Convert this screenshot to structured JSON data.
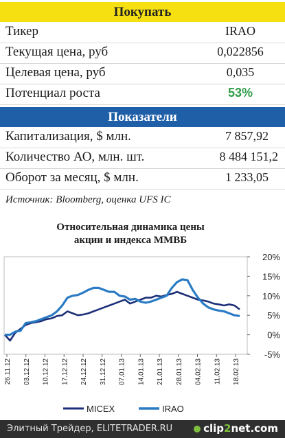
{
  "buy_header": "Покупать",
  "rows": [
    {
      "label": "Тикер",
      "value": "IRAO"
    },
    {
      "label": "Текущая цена, руб",
      "value": "0,022856"
    },
    {
      "label": "Целевая цена, руб",
      "value": "0,035"
    },
    {
      "label": "Потенциал роста",
      "value": "53%"
    }
  ],
  "indicators_header": "Показатели",
  "indicator_rows": [
    {
      "label": "Капитализация, $ млн.",
      "value": "7 857,92"
    },
    {
      "label": "Количество АО, млн. шт.",
      "value": "8 484 151,2"
    },
    {
      "label": "Оборот за месяц, $ млн.",
      "value": "1 233,05"
    }
  ],
  "source": "Источник: Bloomberg, оценка UFS IC",
  "chart_data": {
    "type": "line",
    "title_line1": "Относительная динамика цены",
    "title_line2": "акции и индекса ММВБ",
    "x_ticks": [
      "26.11.12",
      "03.12.12",
      "10.12.12",
      "17.12.12",
      "24.12.12",
      "31.12.12",
      "07.01.13",
      "14.01.13",
      "21.01.13",
      "28.01.13",
      "04.02.13",
      "11.02.13",
      "18.02.13"
    ],
    "y_ticks": [
      "-5%",
      "0%",
      "5%",
      "10%",
      "15%",
      "20%"
    ],
    "ylim": [
      -5,
      20
    ],
    "series": [
      {
        "name": "MICEX",
        "color": "#1c2f78",
        "values": [
          0,
          -1.5,
          0.5,
          1.5,
          2.5,
          3,
          3.2,
          3.5,
          4,
          4.2,
          4.8,
          5,
          6,
          5.5,
          5,
          5.2,
          5.5,
          6,
          6.5,
          7,
          7.5,
          8,
          8.5,
          9,
          8,
          8.5,
          9,
          9.5,
          9.5,
          10,
          9.8,
          10.2,
          10.5,
          11,
          10.5,
          10,
          9.5,
          9,
          8.8,
          8.5,
          8,
          7.8,
          7.5,
          7.8,
          7.5,
          6.5
        ]
      },
      {
        "name": "IRAO",
        "color": "#2a7bc4",
        "values": [
          0,
          0,
          0.8,
          1,
          3,
          3.2,
          3.5,
          4,
          4.5,
          5,
          6,
          7.5,
          9.5,
          10,
          10.2,
          10.8,
          11.5,
          12,
          12,
          11.5,
          11,
          11,
          10,
          9.8,
          9,
          9.2,
          8.5,
          8.2,
          8.5,
          9,
          9.5,
          10,
          12,
          13.5,
          14.2,
          14,
          11.5,
          9.5,
          8,
          7,
          6.5,
          6.2,
          6,
          5.5,
          5,
          4.8
        ]
      }
    ],
    "legend_position": "bottom"
  },
  "footer_left": "Элитный Трейдер, ELITETRADER.RU",
  "footer_right_a": "clip",
  "footer_right_b": "2",
  "footer_right_c": "net.com"
}
